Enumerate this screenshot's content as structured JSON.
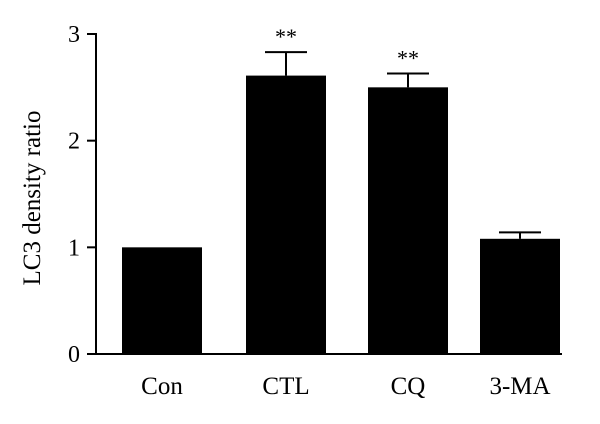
{
  "chart_data": {
    "type": "bar",
    "title": "",
    "xlabel": "",
    "ylabel": "LC3 density ratio",
    "categories": [
      "Con",
      "CTL",
      "CQ",
      "3-MA"
    ],
    "values": [
      1.0,
      2.61,
      2.5,
      1.08
    ],
    "errors": [
      0.0,
      0.22,
      0.13,
      0.06
    ],
    "annotations": [
      "",
      "**",
      "**",
      ""
    ],
    "yticks": [
      "0",
      "1",
      "2",
      "3"
    ],
    "ylim": [
      0,
      3
    ],
    "grid": false,
    "colors": {
      "bar": "#000000",
      "axis": "#000000"
    }
  }
}
